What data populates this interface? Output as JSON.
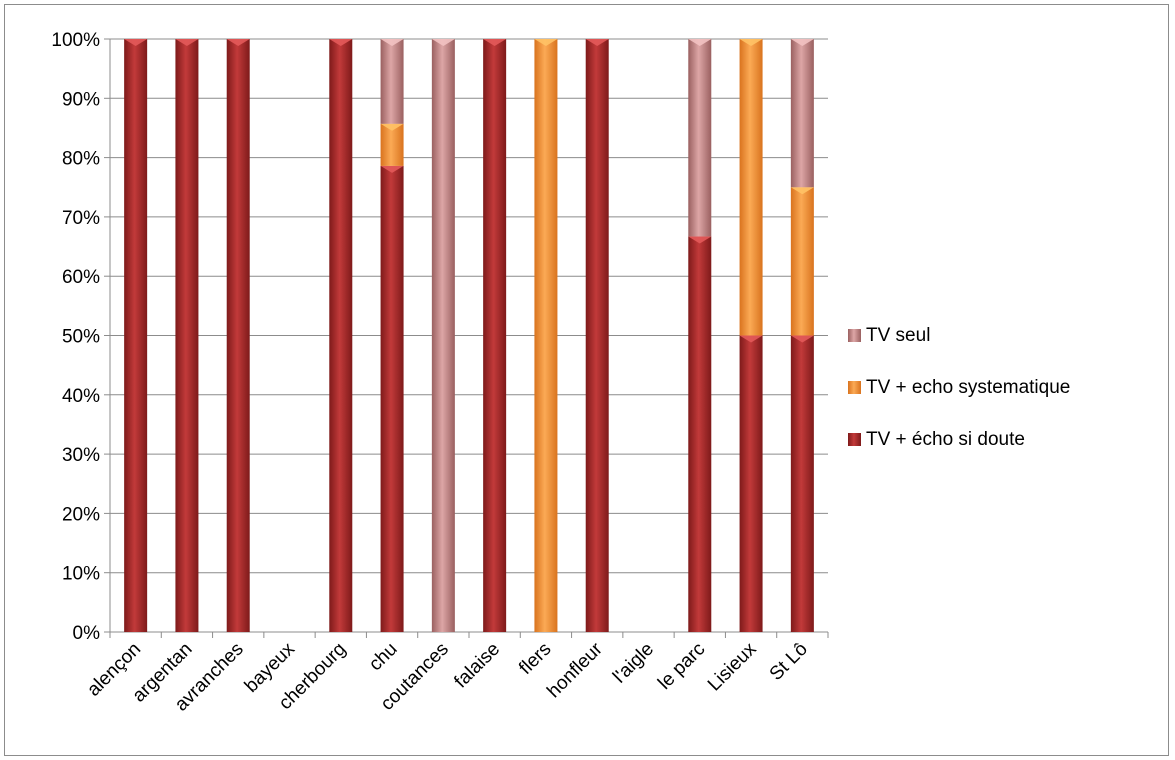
{
  "chart_data": {
    "type": "bar",
    "stacked": true,
    "percent_stacked": true,
    "categories": [
      "alençon",
      "argentan",
      "avranches",
      "bayeux",
      "cherbourg",
      "chu",
      "coutances",
      "falaise",
      "flers",
      "honfleur",
      "l'aigle",
      "le parc",
      "Lisieux",
      "St Lô"
    ],
    "series": [
      {
        "name": "TV + écho si doute",
        "color": "#b52e2e",
        "values": [
          100,
          100,
          100,
          0,
          100,
          78.6,
          0,
          100,
          0,
          100,
          0,
          66.7,
          50,
          50
        ]
      },
      {
        "name": "TV + echo systematique",
        "color": "#f2973a",
        "values": [
          0,
          0,
          0,
          0,
          0,
          7.1,
          0,
          0,
          100,
          0,
          0,
          0,
          50,
          25
        ]
      },
      {
        "name": "TV seul",
        "color": "#c98b8b",
        "values": [
          0,
          0,
          0,
          0,
          0,
          14.3,
          100,
          0,
          0,
          0,
          0,
          33.3,
          0,
          25
        ]
      }
    ],
    "ylim": [
      0,
      100
    ],
    "ytick_labels": [
      "0%",
      "10%",
      "20%",
      "30%",
      "40%",
      "50%",
      "60%",
      "70%",
      "80%",
      "90%",
      "100%"
    ],
    "grid": true,
    "legend": {
      "placement": "right",
      "entries": [
        "TV seul",
        "TV + echo systematique",
        "TV + écho si doute"
      ]
    },
    "title": "",
    "xlabel": "",
    "ylabel": ""
  }
}
